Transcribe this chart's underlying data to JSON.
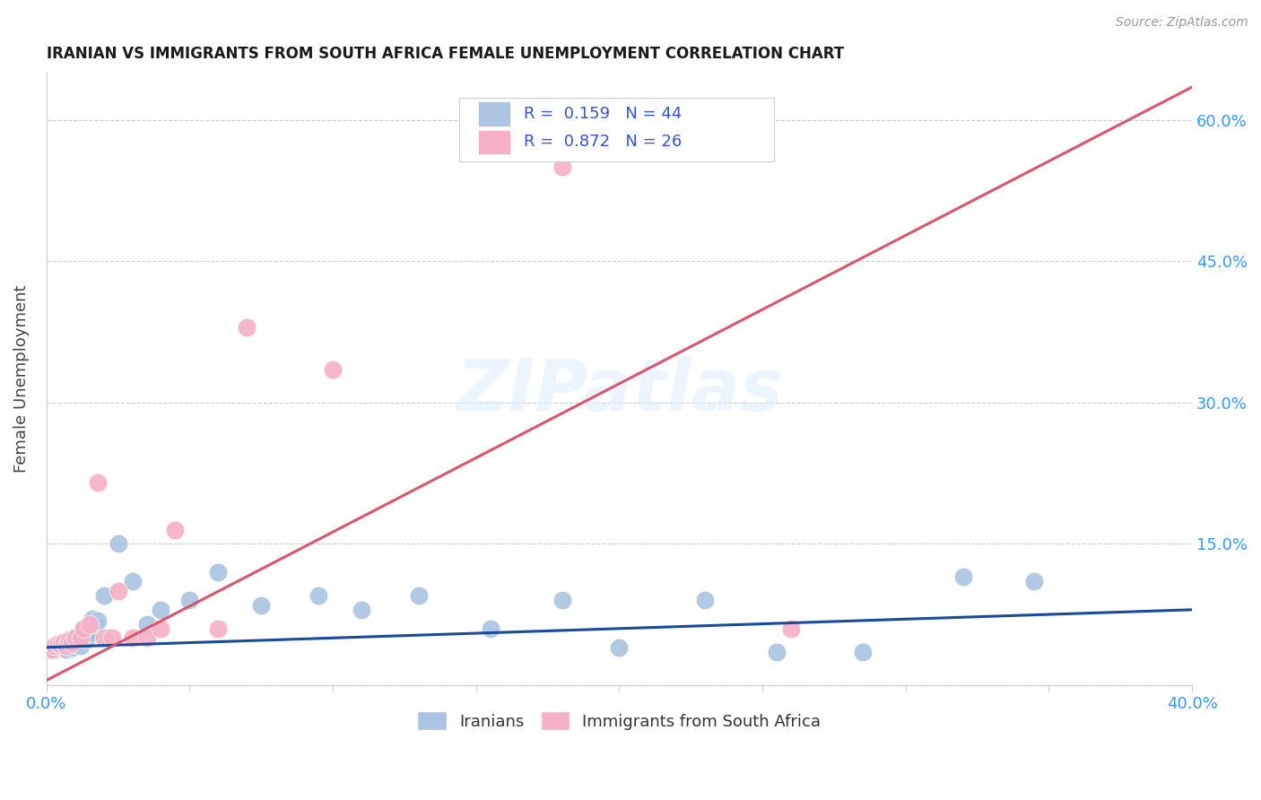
{
  "title": "IRANIAN VS IMMIGRANTS FROM SOUTH AFRICA FEMALE UNEMPLOYMENT CORRELATION CHART",
  "source": "Source: ZipAtlas.com",
  "ylabel": "Female Unemployment",
  "xlim": [
    0.0,
    0.4
  ],
  "ylim": [
    0.0,
    0.65
  ],
  "xticks": [
    0.0,
    0.05,
    0.1,
    0.15,
    0.2,
    0.25,
    0.3,
    0.35,
    0.4
  ],
  "xtick_labels": [
    "0.0%",
    "",
    "",
    "",
    "",
    "",
    "",
    "",
    "40.0%"
  ],
  "yticks": [
    0.0,
    0.15,
    0.3,
    0.45,
    0.6
  ],
  "ytick_labels": [
    "",
    "15.0%",
    "30.0%",
    "45.0%",
    "60.0%"
  ],
  "watermark": "ZIPatlas",
  "iranians_color": "#aac4e2",
  "sa_color": "#f5b0c5",
  "iranians_line_color": "#1a4a9b",
  "sa_line_color": "#d9566e",
  "legend_label1": "Iranians",
  "legend_label2": "Immigrants from South Africa",
  "iranians_x": [
    0.001,
    0.002,
    0.003,
    0.003,
    0.004,
    0.004,
    0.005,
    0.005,
    0.006,
    0.006,
    0.007,
    0.007,
    0.008,
    0.008,
    0.009,
    0.009,
    0.01,
    0.011,
    0.012,
    0.013,
    0.014,
    0.015,
    0.016,
    0.017,
    0.018,
    0.02,
    0.025,
    0.03,
    0.035,
    0.04,
    0.05,
    0.06,
    0.075,
    0.095,
    0.11,
    0.13,
    0.155,
    0.18,
    0.2,
    0.23,
    0.255,
    0.285,
    0.32,
    0.345
  ],
  "iranians_y": [
    0.04,
    0.037,
    0.038,
    0.042,
    0.039,
    0.043,
    0.04,
    0.045,
    0.041,
    0.046,
    0.038,
    0.044,
    0.042,
    0.048,
    0.04,
    0.045,
    0.043,
    0.05,
    0.042,
    0.06,
    0.048,
    0.055,
    0.07,
    0.065,
    0.068,
    0.095,
    0.15,
    0.11,
    0.065,
    0.08,
    0.09,
    0.12,
    0.085,
    0.095,
    0.08,
    0.095,
    0.06,
    0.09,
    0.04,
    0.09,
    0.035,
    0.035,
    0.115,
    0.11
  ],
  "sa_x": [
    0.001,
    0.002,
    0.003,
    0.004,
    0.005,
    0.006,
    0.007,
    0.008,
    0.009,
    0.01,
    0.012,
    0.013,
    0.015,
    0.018,
    0.02,
    0.023,
    0.025,
    0.03,
    0.035,
    0.04,
    0.045,
    0.06,
    0.07,
    0.1,
    0.18,
    0.26
  ],
  "sa_y": [
    0.04,
    0.038,
    0.042,
    0.044,
    0.043,
    0.046,
    0.042,
    0.047,
    0.045,
    0.05,
    0.05,
    0.06,
    0.065,
    0.215,
    0.05,
    0.05,
    0.1,
    0.05,
    0.05,
    0.06,
    0.165,
    0.06,
    0.38,
    0.335,
    0.55,
    0.06
  ],
  "iranians_trend_x": [
    0.0,
    0.4
  ],
  "iranians_trend_y": [
    0.04,
    0.08
  ],
  "sa_trend_x": [
    0.0,
    0.4
  ],
  "sa_trend_y": [
    0.005,
    0.635
  ]
}
